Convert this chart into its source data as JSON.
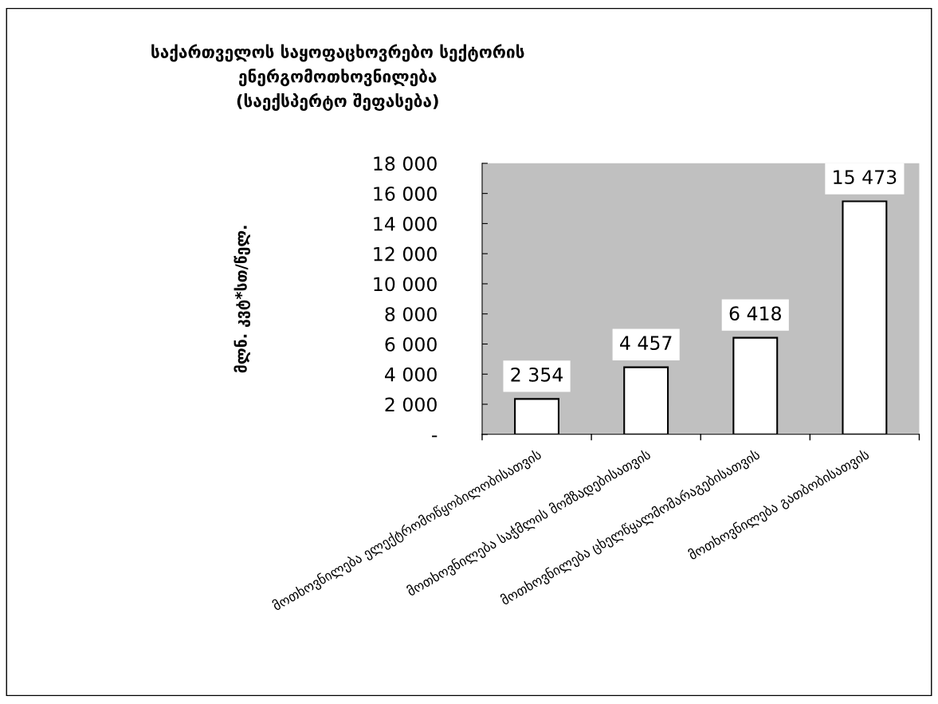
{
  "chart_data": {
    "type": "bar",
    "title": "საქართველოს საყოფაცხოვრებო სექტორის\nენერგომოთხოვნილება\n(საექსპერტო შეფასება)",
    "ylabel": "მლნ. კვტ*სთ/წელ.",
    "categories": [
      "მოთხოვნილება ელექტრომოწყობილობისათვის",
      "მოთხოვნილება საჭმლის მომზადებისათვის",
      "მოთხოვნილება ცხელწყალმომარაგებისათვის",
      "მოთხოვნილება გათბობისათვის"
    ],
    "values": [
      2354,
      4457,
      6418,
      15473
    ],
    "value_labels": [
      "2 354",
      "4 457",
      "6 418",
      "15 473"
    ],
    "color": "#ffffff",
    "ylim": [
      0,
      18000
    ],
    "yticks": [
      {
        "value": 0,
        "label": "-"
      },
      {
        "value": 2000,
        "label": "2 000"
      },
      {
        "value": 4000,
        "label": "4 000"
      },
      {
        "value": 6000,
        "label": "6 000"
      },
      {
        "value": 8000,
        "label": "8 000"
      },
      {
        "value": 10000,
        "label": "10 000"
      },
      {
        "value": 12000,
        "label": "12 000"
      },
      {
        "value": 14000,
        "label": "14 000"
      },
      {
        "value": 16000,
        "label": "16 000"
      },
      {
        "value": 18000,
        "label": "18 000"
      }
    ],
    "grid": false,
    "legend": false
  }
}
